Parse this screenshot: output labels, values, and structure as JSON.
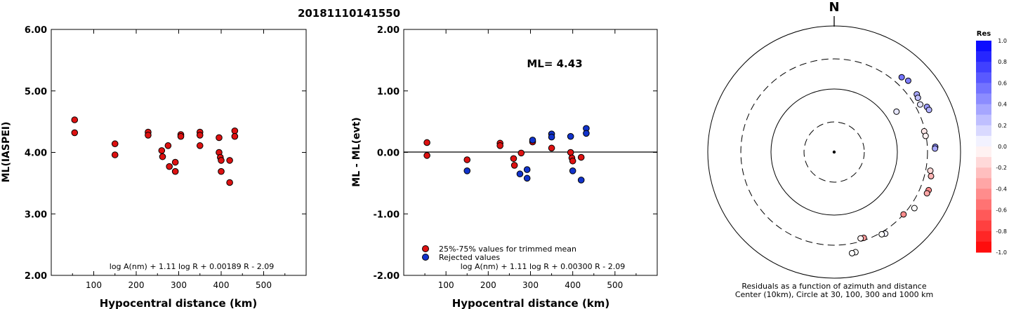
{
  "figure_title": "20181110141550",
  "chart_data": [
    {
      "type": "scatter",
      "xlabel": "Hypocentral distance (km)",
      "ylabel": "ML(IASPEI)",
      "xlim": [
        0,
        600
      ],
      "ylim": [
        2.0,
        6.0
      ],
      "xticks": [
        "100",
        "200",
        "300",
        "400",
        "500"
      ],
      "yticks": [
        "2.00",
        "3.00",
        "4.00",
        "5.00",
        "6.00"
      ],
      "formula": "log A(nm) + 1.11 log R + 0.00189 R - 2.09",
      "marker_color": "#dd1111",
      "points": [
        [
          55,
          4.53
        ],
        [
          55,
          4.32
        ],
        [
          150,
          4.14
        ],
        [
          150,
          3.96
        ],
        [
          228,
          4.33
        ],
        [
          228,
          4.28
        ],
        [
          260,
          4.03
        ],
        [
          262,
          3.93
        ],
        [
          275,
          4.11
        ],
        [
          278,
          3.77
        ],
        [
          292,
          3.84
        ],
        [
          292,
          3.69
        ],
        [
          305,
          4.29
        ],
        [
          305,
          4.26
        ],
        [
          350,
          4.33
        ],
        [
          350,
          4.28
        ],
        [
          350,
          4.11
        ],
        [
          395,
          4.24
        ],
        [
          395,
          4.0
        ],
        [
          398,
          3.92
        ],
        [
          400,
          3.69
        ],
        [
          400,
          3.87
        ],
        [
          420,
          3.87
        ],
        [
          420,
          3.51
        ],
        [
          432,
          4.35
        ],
        [
          432,
          4.26
        ]
      ]
    },
    {
      "type": "scatter",
      "xlabel": "Hypocentral distance (km)",
      "ylabel": "ML - ML(evt)",
      "xlim": [
        0,
        600
      ],
      "ylim": [
        -2.0,
        2.0
      ],
      "xticks": [
        "100",
        "200",
        "300",
        "400",
        "500"
      ],
      "yticks": [
        "-2.00",
        "-1.00",
        "0.00",
        "1.00",
        "2.00"
      ],
      "annotation": "ML= 4.43",
      "formula": "log A(nm) + 1.11 log R + 0.00300 R - 2.09",
      "legend": [
        {
          "label": "25%-75% values for trimmed mean",
          "color": "#dd1111"
        },
        {
          "label": "Rejected values",
          "color": "#1133cc"
        }
      ],
      "series": [
        {
          "name": "25%-75% values for trimmed mean",
          "color": "#dd1111",
          "points": [
            [
              55,
              0.16
            ],
            [
              55,
              -0.05
            ],
            [
              150,
              -0.12
            ],
            [
              228,
              0.15
            ],
            [
              228,
              0.11
            ],
            [
              260,
              -0.1
            ],
            [
              262,
              -0.21
            ],
            [
              278,
              -0.01
            ],
            [
              305,
              0.17
            ],
            [
              350,
              0.07
            ],
            [
              395,
              0.0
            ],
            [
              398,
              -0.09
            ],
            [
              400,
              -0.14
            ],
            [
              420,
              -0.08
            ]
          ]
        },
        {
          "name": "Rejected values",
          "color": "#1133cc",
          "points": [
            [
              150,
              -0.3
            ],
            [
              275,
              -0.35
            ],
            [
              292,
              -0.28
            ],
            [
              292,
              -0.42
            ],
            [
              305,
              0.2
            ],
            [
              350,
              0.3
            ],
            [
              350,
              0.25
            ],
            [
              395,
              0.26
            ],
            [
              400,
              -0.3
            ],
            [
              420,
              -0.45
            ],
            [
              432,
              0.39
            ],
            [
              432,
              0.31
            ]
          ]
        }
      ]
    },
    {
      "type": "polar_scatter",
      "north_label": "N",
      "caption_line1": "Residuals as a function of azimuth and distance",
      "caption_line2": "Center (10km), Circle at 30, 100, 300 and 1000 km",
      "rings_km": [
        30,
        100,
        300,
        1000
      ],
      "colorbar": {
        "title": "Res",
        "ticks": [
          "1.0",
          "0.8",
          "0.6",
          "0.4",
          "0.2",
          "0.0",
          "-0.2",
          "-0.4",
          "-0.6",
          "-0.8",
          "-1.0"
        ],
        "max_color": "#0000ff",
        "min_color": "#ff0000"
      },
      "stations": [
        {
          "az": 57,
          "dist": 150,
          "res": 0.1
        },
        {
          "az": 42,
          "dist": 395,
          "res": 0.55
        },
        {
          "az": 46,
          "dist": 425,
          "res": 0.5
        },
        {
          "az": 55,
          "dist": 395,
          "res": 0.35
        },
        {
          "az": 57,
          "dist": 380,
          "res": 0.25
        },
        {
          "az": 61,
          "dist": 360,
          "res": 0.1
        },
        {
          "az": 64,
          "dist": 430,
          "res": 0.4
        },
        {
          "az": 66,
          "dist": 440,
          "res": 0.3
        },
        {
          "az": 77,
          "dist": 290,
          "res": -0.1
        },
        {
          "az": 80,
          "dist": 295,
          "res": -0.05
        },
        {
          "az": 87,
          "dist": 400,
          "res": 0.45
        },
        {
          "az": 88,
          "dist": 395,
          "res": 0.35
        },
        {
          "az": 104,
          "dist": 380,
          "res": -0.3
        },
        {
          "az": 101,
          "dist": 355,
          "res": -0.15
        },
        {
          "az": 112,
          "dist": 410,
          "res": -0.45
        },
        {
          "az": 114,
          "dist": 405,
          "res": -0.35
        },
        {
          "az": 125,
          "dist": 355,
          "res": 0.0
        },
        {
          "az": 132,
          "dist": 300,
          "res": -0.45
        },
        {
          "az": 148,
          "dist": 335,
          "res": 0.05
        },
        {
          "az": 150,
          "dist": 320,
          "res": 0.0
        },
        {
          "az": 161,
          "dist": 275,
          "res": -0.4
        },
        {
          "az": 163,
          "dist": 270,
          "res": -0.05
        },
        {
          "az": 168,
          "dist": 420,
          "res": 0.0
        },
        {
          "az": 170,
          "dist": 425,
          "res": 0.0
        }
      ]
    }
  ]
}
